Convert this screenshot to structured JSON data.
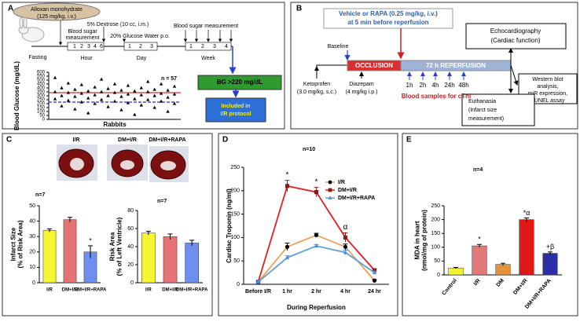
{
  "panels": [
    "A",
    "B",
    "C",
    "D",
    "E"
  ],
  "panel_a": {
    "drug": [
      "Alloxan monohydrate",
      "(125 mg/kg, i.v.)"
    ],
    "dextrose": "5% Dextrose (10 cc, i.m.)",
    "glucose_water": "20% Glucose Water p.o.",
    "measure_1": [
      "Blood sugar",
      "measurement"
    ],
    "measure_2": "Blood sugar measurement",
    "fasting": "Fasting",
    "hour": "Hour",
    "day": "Day",
    "week": "Week",
    "hours": [
      "1",
      "2",
      "3",
      "4",
      "6"
    ],
    "days": [
      "1",
      "2",
      "3"
    ],
    "weeks": [
      "1",
      "2",
      "3",
      "4"
    ],
    "criterion": "BG >220 mg/dL",
    "outcome": [
      "Included in",
      "I/R protocol"
    ]
  },
  "panel_b": {
    "treatment": [
      "Vehicle or RAPA (0.25 mg/kg, i.v.)",
      "at 5 min before reperfusion"
    ],
    "baseline": "Baseline",
    "occlusion": "OCCLUSION",
    "reperfusion": "72 h REPERFUSION",
    "echo": [
      "Echocardiography",
      "(Cardiac function)"
    ],
    "assays": [
      "Western blot",
      "analysis,",
      "miR expression,",
      "TUNEL assay"
    ],
    "ketoprofen": [
      "Ketoprofen",
      "(3.0 mg/kg, s.c.)"
    ],
    "diazepam": [
      "Diazepam",
      "(4 mg/kg i.p.)"
    ],
    "times": [
      "1h",
      "2h",
      "4h",
      "24h",
      "48h"
    ],
    "samples": "Blood samples for cTnI",
    "euthanasia": [
      "Euthanasia",
      "(Infarct size",
      "measurement)"
    ]
  },
  "panel_c": {
    "images": [
      "I/R",
      "DM+I/R",
      "DM+I/R+RAPA"
    ]
  },
  "chart_data": [
    {
      "type": "scatter",
      "ylabel": [
        "Blood Glucose (mg/dL)"
      ],
      "xlabel": "Rabbits",
      "note": "n = 57",
      "color": "#000000",
      "values": [
        530,
        510,
        480,
        460,
        450,
        450,
        440,
        430,
        420,
        410,
        400,
        400,
        390,
        380,
        380,
        370,
        370,
        360,
        360,
        350,
        350,
        350,
        340,
        340,
        330,
        330,
        320,
        320,
        310,
        310,
        300,
        300,
        300,
        290,
        290,
        280,
        270,
        260,
        260,
        250,
        250,
        240,
        230,
        230,
        220,
        210,
        200,
        200,
        180,
        170,
        160,
        150,
        130,
        120,
        100,
        80,
        60
      ],
      "ylim": [
        0,
        600
      ],
      "yticks": [
        0,
        50,
        100,
        150,
        200,
        250,
        300,
        350,
        400,
        450,
        500,
        550,
        600
      ],
      "reference_lines": [
        {
          "value": 340,
          "color": "#e02828",
          "dashed": false
        },
        {
          "value": 220,
          "color": "#2a2ad0",
          "dashed": true
        }
      ]
    },
    {
      "type": "bar",
      "ylabel": [
        "Infarct Size",
        "(% of Risk Area)"
      ],
      "note": "n=7",
      "categories": [
        "I/R",
        "DM+I/R",
        "DM+I/R+RAPA"
      ],
      "values": [
        34,
        41,
        20
      ],
      "errors": [
        1,
        1.5,
        4
      ],
      "colors": [
        "#f5f532",
        "#e57373",
        "#6f8ff0"
      ],
      "significance": [
        null,
        null,
        "*"
      ],
      "ylim": [
        0,
        50
      ],
      "yticks": [
        0,
        10,
        20,
        30,
        40,
        50
      ]
    },
    {
      "type": "bar",
      "ylabel": [
        "Risk Area",
        "(% of Left Ventricle)"
      ],
      "note": "n=7",
      "categories": [
        "I/R",
        "DM+I/R",
        "DM+I/R+RAPA"
      ],
      "values": [
        55,
        51,
        44
      ],
      "errors": [
        2,
        3,
        3
      ],
      "colors": [
        "#f5f532",
        "#e57373",
        "#6f8ff0"
      ],
      "ylim": [
        0,
        80
      ],
      "yticks": [
        0,
        20,
        40,
        60,
        80
      ]
    },
    {
      "type": "line",
      "ylabel": [
        "Cardiac Troponin (ng/ml)"
      ],
      "xlabel": "During Reperfusion",
      "note": "n=10",
      "categories": [
        "Before I/R",
        "1 hr",
        "2 hr",
        "4 hr",
        "24 hr"
      ],
      "series": [
        {
          "name": "I/R",
          "color": "#f0a050",
          "marker": "circle",
          "marker_color": "#000000",
          "values": [
            5,
            80,
            105,
            80,
            8
          ],
          "errors": [
            1,
            8,
            4,
            6,
            2
          ]
        },
        {
          "name": "DM+I/R",
          "color": "#e02020",
          "marker": "square",
          "marker_color": "#8b1a1a",
          "values": [
            5,
            210,
            197,
            100,
            30
          ],
          "errors": [
            1,
            12,
            10,
            10,
            3
          ]
        },
        {
          "name": "DM+I/R+RAPA",
          "color": "#5aa0e0",
          "marker": "triangle",
          "marker_color": "#4a90e0",
          "values": [
            5,
            57,
            82,
            68,
            25
          ],
          "errors": [
            1,
            4,
            3,
            5,
            3
          ]
        }
      ],
      "significance": [
        null,
        "*",
        "*",
        "α",
        null
      ],
      "ylim": [
        0,
        250
      ],
      "yticks": [
        0,
        50,
        100,
        150,
        200,
        250
      ]
    },
    {
      "type": "bar",
      "ylabel": [
        "MDA in heart",
        "(nmol/mg of protein)"
      ],
      "note": "n=4",
      "categories": [
        "Control",
        "I/R",
        "DM",
        "DM+I/R",
        "DM+I/R+RAPA"
      ],
      "values": [
        25,
        105,
        38,
        200,
        78
      ],
      "errors": [
        2,
        5,
        4,
        6,
        5
      ],
      "colors": [
        "#f2f230",
        "#e07a7a",
        "#e8923a",
        "#e01818",
        "#2b2fa8"
      ],
      "significance": [
        null,
        "*",
        null,
        "*α",
        "+β"
      ],
      "ylim": [
        0,
        250
      ],
      "yticks": [
        0,
        50,
        100,
        150,
        200,
        250
      ]
    }
  ]
}
